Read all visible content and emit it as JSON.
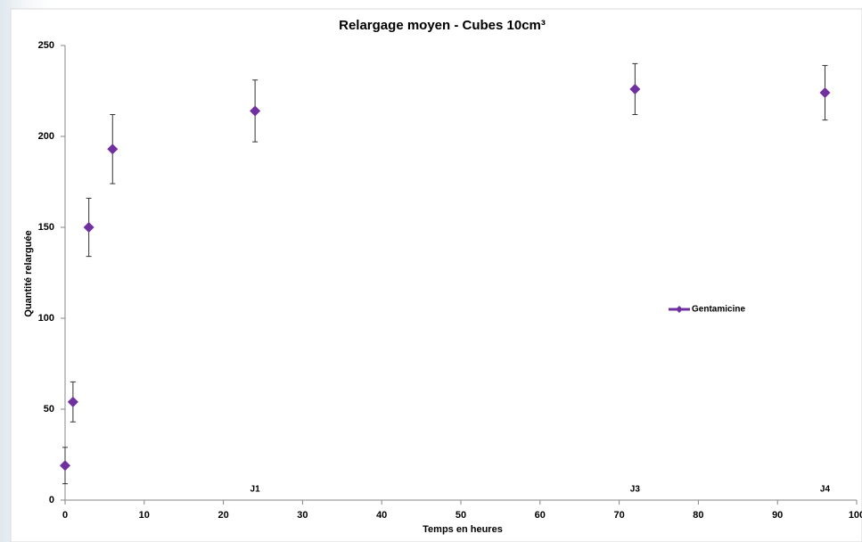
{
  "chart_data": {
    "type": "line",
    "title": "Relargage moyen - Cubes 10cm³",
    "x_label": "Temps en heures",
    "y_label": "Quantité relarguée",
    "x": [
      0,
      1,
      3,
      6,
      24,
      72,
      96
    ],
    "series": [
      {
        "name": "Gentamicine",
        "color": "#7030a0",
        "values": [
          19,
          54,
          150,
          193,
          214,
          226,
          224
        ],
        "errors": [
          10,
          11,
          16,
          19,
          17,
          14,
          15
        ]
      }
    ],
    "xlim": [
      0,
      100
    ],
    "xticks": [
      0,
      10,
      20,
      30,
      40,
      50,
      60,
      70,
      80,
      90,
      100
    ],
    "ylim": [
      0,
      250
    ],
    "yticks": [
      0,
      50,
      100,
      150,
      200,
      250
    ],
    "annotations": [
      {
        "text": "J1",
        "x": 24
      },
      {
        "text": "J3",
        "x": 72
      },
      {
        "text": "J4",
        "x": 96
      }
    ],
    "grid": false
  }
}
